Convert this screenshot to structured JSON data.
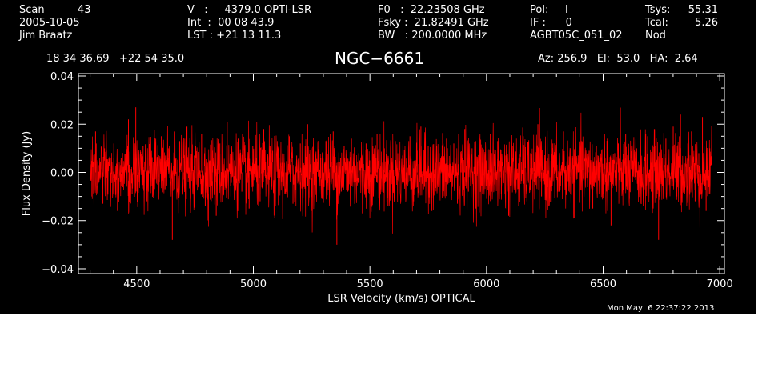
{
  "header": {
    "scan": "Scan          43",
    "date": "2005-10-05",
    "observer": "Jim Braatz",
    "velocity": "V   :     4379.0 OPTI-LSR",
    "int_time": "Int  :  00 08 43.9",
    "lst": "LST : +21 13 11.3",
    "f0": "F0   :  22.23508 GHz",
    "fsky": "Fsky :  21.82491 GHz",
    "bw": "BW   : 200.0000 MHz",
    "pol": "Pol:     I",
    "if_num": "IF :      0",
    "project": "AGBT05C_051_02",
    "tsys_label": "Tsys:",
    "tsys_value": "55.31",
    "tcal_label": "Tcal:",
    "tcal_value": "5.26",
    "mode": "Nod",
    "coords": "18 34 36.69   +22 54 35.0",
    "source": "NGC−6661",
    "az_el_ha": "Az: 256.9   El:  53.0   HA:  2.64"
  },
  "timestamp": "Mon May  6 22:37:22 2013",
  "colors": {
    "background": "#000000",
    "axes": "#ffffff",
    "trace": "#ff0000"
  },
  "chart_data": {
    "type": "line",
    "title": "NGC−6661",
    "xlabel": "LSR Velocity (km/s) OPTICAL",
    "ylabel": "Flux Density (Jy)",
    "xlim": [
      4250,
      7020
    ],
    "ylim": [
      -0.042,
      0.041
    ],
    "xticks": [
      4500,
      5000,
      5500,
      6000,
      6500,
      7000
    ],
    "xtick_labels": [
      "4500",
      "5000",
      "5500",
      "6000",
      "6500",
      "7000"
    ],
    "yticks": [
      -0.04,
      -0.02,
      0.0,
      0.02,
      0.04
    ],
    "ytick_labels": [
      "−0.04",
      "−0.02",
      "0.00",
      "0.02",
      "0.04"
    ],
    "grid": false,
    "series": [
      {
        "color": "#ff0000",
        "x_start": 4300,
        "x_end": 6965,
        "noise_rms": 0.0075,
        "values": [
          -0.01,
          0.017,
          0.003,
          -0.013,
          0.009,
          -0.005,
          0.012,
          -0.016,
          0.006,
          0.002,
          0.022,
          -0.009,
          0.027,
          -0.004,
          0.011,
          -0.012,
          0.008,
          -0.02,
          0.004,
          0.015,
          -0.007,
          0.01,
          -0.028,
          0.006,
          0.013,
          -0.003,
          0.019,
          -0.011,
          0.007,
          -0.006,
          0.016,
          -0.014,
          0.002,
          0.009,
          -0.018,
          0.012,
          -0.004,
          0.021,
          -0.01,
          0.005,
          0.014,
          -0.008,
          0.003,
          -0.015,
          0.011,
          0.006,
          -0.012,
          0.018,
          -0.005,
          0.008,
          -0.019,
          0.01,
          0.004,
          -0.009,
          0.015,
          -0.013,
          0.007,
          0.012,
          -0.006,
          0.02,
          -0.016,
          0.003,
          0.009,
          -0.011,
          0.013,
          -0.004,
          0.017,
          -0.03,
          0.006,
          0.011,
          -0.008,
          0.014,
          -0.003,
          0.008,
          -0.017,
          0.012,
          0.005,
          -0.01,
          0.016,
          -0.007,
          0.01,
          -0.014,
          0.004,
          0.013,
          -0.009,
          0.007,
          -0.005,
          0.015,
          -0.012,
          0.009,
          0.019,
          -0.006,
          0.011,
          -0.016,
          0.004,
          0.008,
          -0.01,
          0.014,
          -0.004,
          0.012,
          -0.013,
          0.006,
          0.018,
          -0.008,
          0.01,
          -0.015,
          0.003,
          0.009,
          -0.011,
          0.016,
          -0.005,
          0.013,
          -0.009,
          0.007,
          -0.018,
          0.011,
          0.005,
          -0.007,
          0.015,
          -0.012,
          0.008,
          -0.004,
          0.02,
          -0.01,
          0.006,
          -0.014,
          0.012,
          0.004,
          -0.008,
          0.017,
          -0.006,
          0.01,
          -0.019,
          0.007,
          0.013,
          -0.003,
          0.009,
          -0.015,
          0.011,
          0.005,
          -0.009,
          0.014,
          -0.022,
          0.008,
          0.012,
          -0.006,
          0.016,
          -0.011,
          0.004,
          0.01,
          -0.013,
          0.007,
          0.015,
          -0.008,
          0.011,
          -0.028,
          0.006,
          0.014,
          -0.005,
          0.019,
          -0.01,
          0.024,
          -0.007,
          0.012,
          0.017,
          -0.012,
          0.008,
          0.023,
          -0.016,
          0.01
        ]
      }
    ]
  }
}
